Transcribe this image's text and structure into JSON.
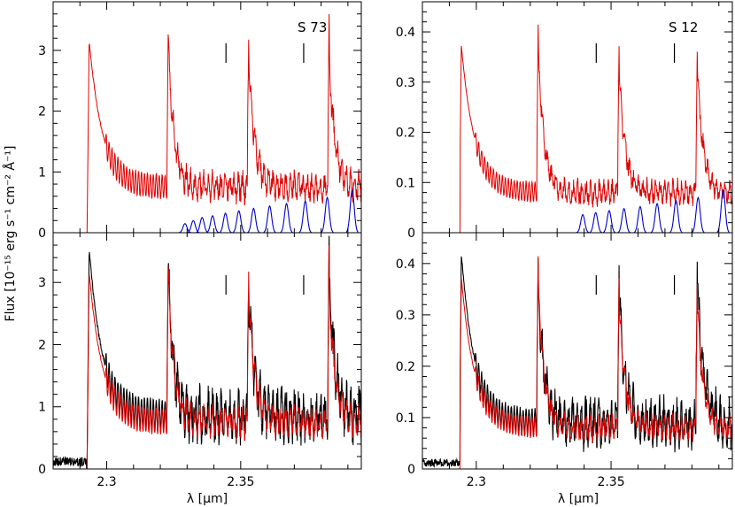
{
  "figure": {
    "ylabel": "Flux [10⁻¹⁵ erg s⁻¹ cm⁻² Å⁻¹]",
    "xlabel": "λ [μm]",
    "colors": {
      "model": "#e00000",
      "observed": "#000000",
      "lines": "#0000cc",
      "frame": "#000000"
    }
  },
  "chart_data": [
    {
      "panel": "top-left",
      "type": "line",
      "label": "S 73",
      "xlim": [
        2.28,
        2.395
      ],
      "ylim": [
        0,
        3.8
      ],
      "xticks": [
        2.3,
        2.35
      ],
      "xtick_labels": [
        "",
        ""
      ],
      "yticks": [
        0,
        1,
        2,
        3
      ],
      "ytick_labels": [
        "0",
        "1",
        "2",
        "3"
      ],
      "marker_x": [
        2.3445,
        2.3735
      ],
      "series": [
        {
          "role": "model",
          "color": "#e00000",
          "band_start": 2.2925,
          "cont": 0.75,
          "osc": 0.2,
          "heads": [
            2.293,
            2.3225,
            2.3525,
            2.3825
          ],
          "peaks": [
            3.4,
            3.65,
            3.45,
            3.4
          ],
          "noise": 0.25,
          "seed": 1
        },
        {
          "role": "lines",
          "color": "#0000cc",
          "x": [
            2.3292,
            2.3323,
            2.3356,
            2.3395,
            2.3443,
            2.3493,
            2.3548,
            2.3608,
            2.3671,
            2.3741,
            2.3823,
            2.3916
          ],
          "values": [
            0.15,
            0.2,
            0.25,
            0.28,
            0.32,
            0.36,
            0.4,
            0.44,
            0.48,
            0.52,
            0.58,
            0.7
          ]
        }
      ]
    },
    {
      "panel": "top-right",
      "type": "line",
      "label": "S 12",
      "xlim": [
        2.28,
        2.395
      ],
      "ylim": [
        0,
        0.46
      ],
      "xticks": [
        2.3,
        2.35
      ],
      "xtick_labels": [
        "",
        ""
      ],
      "yticks": [
        0,
        0.1,
        0.2,
        0.3,
        0.4
      ],
      "ytick_labels": [
        "0",
        "0.1",
        "0.2",
        "0.3",
        "0.4"
      ],
      "marker_x": [
        2.3445,
        2.3735
      ],
      "series": [
        {
          "role": "model",
          "color": "#e00000",
          "band_start": 2.294,
          "cont": 0.08,
          "osc": 0.02,
          "heads": [
            2.294,
            2.3225,
            2.3525,
            2.3815
          ],
          "peaks": [
            0.4,
            0.435,
            0.39,
            0.385
          ],
          "noise": 0.025,
          "seed": 2
        },
        {
          "role": "lines",
          "color": "#0000cc",
          "x": [
            2.3395,
            2.3443,
            2.3493,
            2.3548,
            2.3608,
            2.3671,
            2.3741,
            2.3823,
            2.3916
          ],
          "values": [
            0.036,
            0.04,
            0.044,
            0.048,
            0.052,
            0.058,
            0.064,
            0.07,
            0.085
          ]
        }
      ]
    },
    {
      "panel": "bottom-left",
      "type": "line",
      "xlim": [
        2.28,
        2.395
      ],
      "ylim": [
        0,
        3.8
      ],
      "xticks": [
        2.3,
        2.35
      ],
      "xtick_labels": [
        "2.3",
        "2.35"
      ],
      "yticks": [
        0,
        1,
        2,
        3
      ],
      "ytick_labels": [
        "0",
        "1",
        "2",
        "3"
      ],
      "marker_x": [
        2.3445,
        2.3735
      ],
      "series": [
        {
          "role": "observed",
          "color": "#000000",
          "band_start": 2.2925,
          "cont": 0.85,
          "osc": 0.25,
          "heads": [
            2.293,
            2.3225,
            2.3525,
            2.3825
          ],
          "peaks": [
            3.8,
            3.6,
            3.35,
            3.75
          ],
          "noise": 0.45,
          "pre": 0.15,
          "seed": 7
        },
        {
          "role": "model",
          "color": "#e00000",
          "band_start": 2.2925,
          "cont": 0.75,
          "osc": 0.2,
          "heads": [
            2.293,
            2.3225,
            2.3525,
            2.3825
          ],
          "peaks": [
            3.4,
            3.65,
            3.45,
            3.4
          ],
          "noise": 0.25,
          "seed": 1
        }
      ]
    },
    {
      "panel": "bottom-right",
      "type": "line",
      "xlim": [
        2.28,
        2.395
      ],
      "ylim": [
        0,
        0.46
      ],
      "xticks": [
        2.3,
        2.35
      ],
      "xtick_labels": [
        "2.3",
        "2.35"
      ],
      "yticks": [
        0,
        0.1,
        0.2,
        0.3,
        0.4
      ],
      "ytick_labels": [
        "0",
        "0.1",
        "0.2",
        "0.3",
        "0.4"
      ],
      "marker_x": [
        2.3445,
        2.3735
      ],
      "series": [
        {
          "role": "observed",
          "color": "#000000",
          "band_start": 2.294,
          "cont": 0.09,
          "osc": 0.025,
          "heads": [
            2.294,
            2.3225,
            2.3525,
            2.3815
          ],
          "peaks": [
            0.45,
            0.43,
            0.4,
            0.44
          ],
          "noise": 0.05,
          "pre": 0.015,
          "seed": 9
        },
        {
          "role": "model",
          "color": "#e00000",
          "band_start": 2.294,
          "cont": 0.08,
          "osc": 0.02,
          "heads": [
            2.294,
            2.3225,
            2.3525,
            2.3815
          ],
          "peaks": [
            0.4,
            0.435,
            0.39,
            0.385
          ],
          "noise": 0.025,
          "seed": 2
        }
      ]
    }
  ]
}
